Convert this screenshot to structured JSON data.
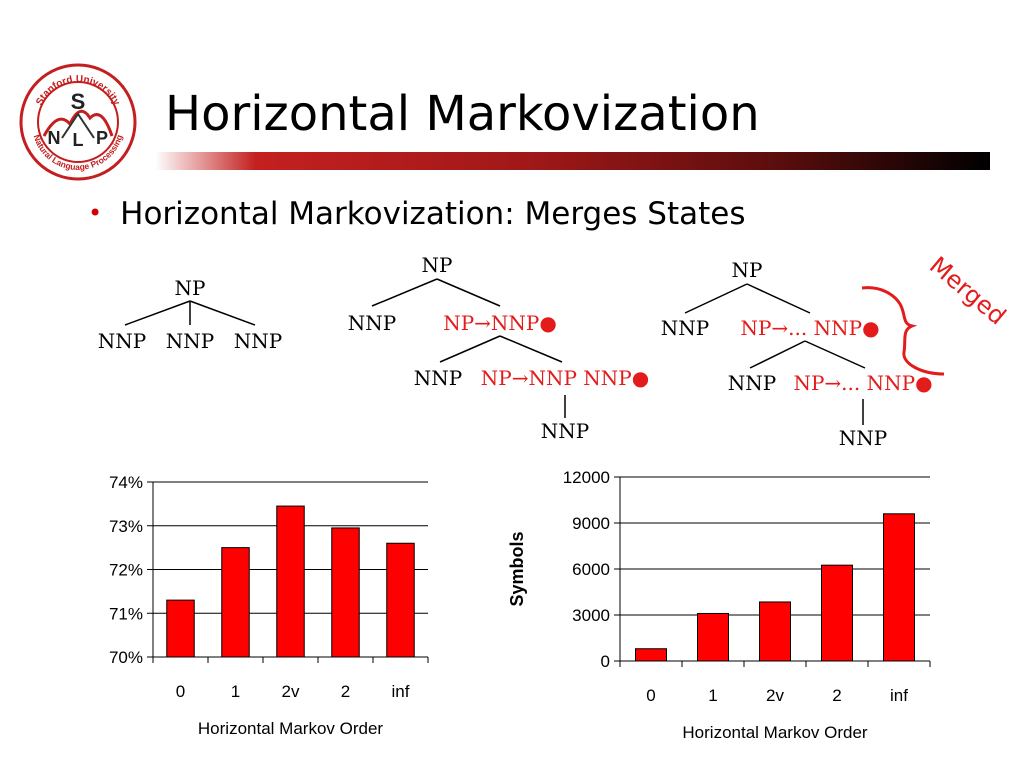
{
  "slide": {
    "title": "Horizontal Markovization",
    "bullet": "Horizontal Markovization: Merges States",
    "logo": {
      "top_text": "Stanford University",
      "bottom_text": "Natural Language Processing",
      "letters": [
        "S",
        "N",
        "L",
        "P"
      ],
      "color": "#c41e1e"
    },
    "accent_color": "#e31b1b"
  },
  "trees": {
    "tree1": {
      "root": "NP",
      "children": [
        "NNP",
        "NNP",
        "NNP"
      ]
    },
    "tree2": {
      "root": "NP",
      "l1_left": "NNP",
      "l1_right": "NP→NNP●",
      "l2_left": "NNP",
      "l2_right": "NP→NNP NNP●",
      "l3": "NNP"
    },
    "tree3": {
      "root": "NP",
      "l1_left": "NNP",
      "l1_right": "NP→... NNP●",
      "l2_left": "NNP",
      "l2_right": "NP→... NNP●",
      "l3": "NNP"
    },
    "merged_label": "Merged"
  },
  "chart_data": [
    {
      "type": "bar",
      "categories": [
        "0",
        "1",
        "2v",
        "2",
        "inf"
      ],
      "values": [
        71.3,
        72.5,
        73.45,
        72.95,
        72.6
      ],
      "ylim": [
        70,
        74
      ],
      "yticks": [
        "70%",
        "71%",
        "72%",
        "73%",
        "74%"
      ],
      "xlabel": "Horizontal Markov Order",
      "ylabel": "",
      "bar_color": "#ff0000",
      "grid": true
    },
    {
      "type": "bar",
      "categories": [
        "0",
        "1",
        "2v",
        "2",
        "inf"
      ],
      "values": [
        800,
        3100,
        3850,
        6250,
        9600
      ],
      "ylim": [
        0,
        12000
      ],
      "yticks": [
        "0",
        "3000",
        "6000",
        "9000",
        "12000"
      ],
      "xlabel": "Horizontal Markov Order",
      "ylabel": "Symbols",
      "bar_color": "#ff0000",
      "grid": true
    }
  ]
}
